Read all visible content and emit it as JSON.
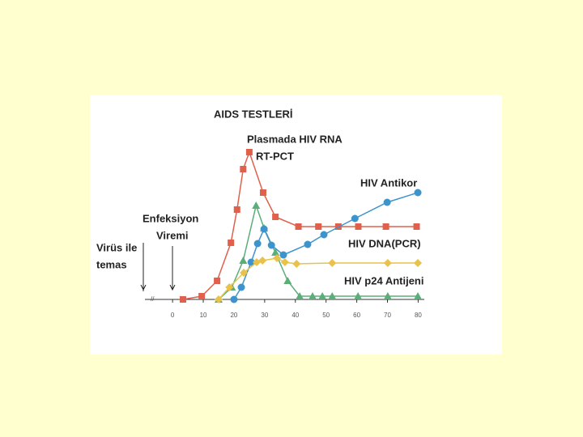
{
  "chart_data": {
    "type": "line",
    "annotations": [
      "AIDS TESTLERİ",
      "Plasmada HIV RNA",
      "RT-PCT",
      "HIV Antikor",
      "HIV DNA(PCR)",
      "HIV p24 Antijeni",
      "Enfeksiyon",
      "Viremi",
      "Virüs ile",
      "temas"
    ],
    "xlim": [
      -9,
      82
    ],
    "ylim": [
      0,
      100
    ],
    "xticks": [
      0,
      10,
      20,
      30,
      40,
      50,
      60,
      70,
      80
    ],
    "series": [
      {
        "color": "#e0604c",
        "marker": "square",
        "x": [
          3.4,
          9.5,
          14.5,
          19,
          21,
          23,
          25,
          29.5,
          33.5,
          41,
          47.5,
          54,
          60.5,
          69.5,
          79.5
        ],
        "values": [
          0,
          2,
          11.5,
          35,
          55.5,
          80.5,
          91,
          66,
          51,
          45,
          45,
          45,
          45,
          45,
          45
        ]
      },
      {
        "color": "#5aae78",
        "marker": "triangle",
        "x": [
          15,
          19.3,
          23,
          27.2,
          29.8,
          33.5,
          37.5,
          41.4,
          45.6,
          48.8,
          52,
          60.4,
          70.1,
          79.9
        ],
        "values": [
          0,
          7.5,
          24,
          58,
          44,
          29,
          11.5,
          2,
          2,
          2,
          2,
          2,
          2,
          2
        ]
      },
      {
        "color": "#3d94cc",
        "marker": "circle",
        "x": [
          20,
          22.4,
          25.6,
          27.7,
          29.8,
          32.2,
          36.1,
          44,
          49.3,
          59.4,
          69.9,
          79.9
        ],
        "values": [
          0,
          7.5,
          23,
          34.5,
          43.5,
          33.5,
          27.5,
          34,
          40,
          50,
          60,
          66
        ]
      },
      {
        "color": "#e8c24a",
        "marker": "diamond",
        "x": [
          15,
          18.5,
          23.2,
          27.4,
          29.3,
          34,
          36.6,
          40.4,
          52,
          70.1,
          79.9
        ],
        "values": [
          0,
          7.5,
          16.5,
          23,
          24,
          25.5,
          23,
          22,
          22.5,
          22.5,
          22.5
        ]
      }
    ]
  }
}
